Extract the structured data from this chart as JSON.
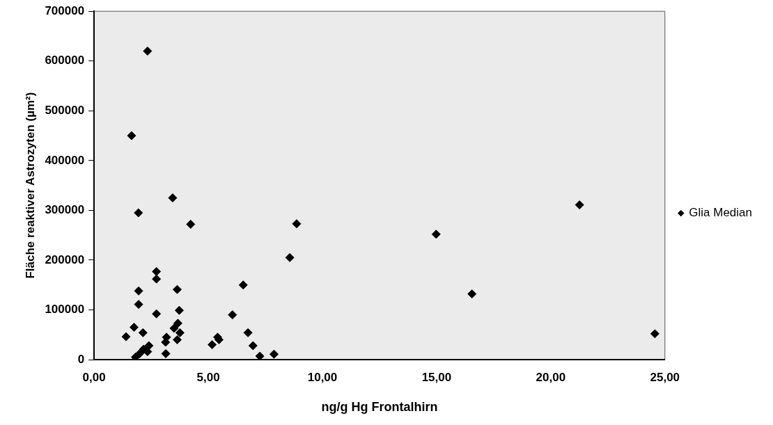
{
  "chart_data": {
    "type": "scatter",
    "xlabel": "ng/g Hg Frontalhirn",
    "ylabel": "Fläche reaktiver Astrozyten (µm²)",
    "xlim": [
      0,
      25
    ],
    "xticks": [
      {
        "value": 0,
        "label": "0,00"
      },
      {
        "value": 5,
        "label": "5,00"
      },
      {
        "value": 10,
        "label": "10,00"
      },
      {
        "value": 15,
        "label": "15,00"
      },
      {
        "value": 20,
        "label": "20,00"
      },
      {
        "value": 25,
        "label": "25,00"
      }
    ],
    "ylim": [
      0,
      700000
    ],
    "yticks": [
      0,
      100000,
      200000,
      300000,
      400000,
      500000,
      600000,
      700000
    ],
    "grid": false,
    "legend": "right",
    "marker": "diamond",
    "series": [
      {
        "name": "Glia Median",
        "color": "#000000",
        "x": [
          2.34,
          1.64,
          3.44,
          1.94,
          4.23,
          2.73,
          2.73,
          1.95,
          3.64,
          1.95,
          2.73,
          3.73,
          3.67,
          3.5,
          3.76,
          1.75,
          2.14,
          1.4,
          3.17,
          3.64,
          3.13,
          2.4,
          2.17,
          1.99,
          1.81,
          2.34,
          3.14,
          6.06,
          5.41,
          5.17,
          5.47,
          6.53,
          6.74,
          6.96,
          7.26,
          7.88,
          8.57,
          8.87,
          14.98,
          16.55,
          21.26,
          24.56
        ],
        "values": [
          620000,
          450000,
          325000,
          295000,
          272000,
          177000,
          162000,
          138000,
          141000,
          111000,
          92000,
          99000,
          73000,
          63000,
          54000,
          65000,
          54000,
          46000,
          45000,
          40000,
          35000,
          28000,
          21000,
          12000,
          5000,
          16000,
          12000,
          90000,
          45000,
          30000,
          40000,
          150000,
          54000,
          28000,
          7000,
          11000,
          205000,
          273000,
          252000,
          132000,
          311000,
          52000
        ]
      }
    ]
  }
}
